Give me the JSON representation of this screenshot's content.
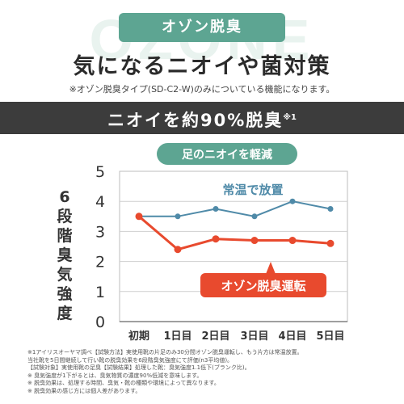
{
  "background_text": "OZONE",
  "tag_label": "オゾン脱臭",
  "headline": "気になるニオイや菌対策",
  "subnote": "※オゾン脱臭タイプ(SD-C2-W)のみについている機能になります。",
  "banner": {
    "text": "ニオイを約90%脱臭",
    "sup": "※1"
  },
  "chart_data": {
    "type": "line",
    "title": "足のニオイを軽減",
    "ylabel": "6段階臭気強度",
    "categories": [
      "初期",
      "1日目",
      "2日目",
      "3日目",
      "4日目",
      "5日目"
    ],
    "ylim": [
      0,
      5
    ],
    "yticks": [
      "0",
      "1",
      "2",
      "3",
      "4",
      "5"
    ],
    "grid": true,
    "series": [
      {
        "name": "常温で放置",
        "values": [
          3.5,
          3.5,
          3.75,
          3.5,
          4.0,
          3.75
        ],
        "color": "#4f8aa8"
      },
      {
        "name": "オゾン脱臭運転",
        "values": [
          3.5,
          2.4,
          2.75,
          2.7,
          2.7,
          2.6
        ],
        "color": "#e84a2e"
      }
    ]
  },
  "colors": {
    "accent_green": "#5da592",
    "dark_banner": "#3c3c3c",
    "red_series": "#e84a2e",
    "blue_series": "#4f8aa8"
  },
  "footnotes": [
    "※1アイリスオーヤマ調べ【試験方法】実使用靴の片足のみ30分間オゾン脱臭運転し、もう片方は常温放置。",
    "当社靴を5日間継続して行い靴の脱臭効果を6段階臭気強度にて評価(n3平均値)。",
    "【試験対象】実使用靴の足臭【試験結果】処理した靴：臭気強度1.1低下(ブランク比)。",
    "※ 臭気強度が1下がるとは、臭気物質の濃度90%低減を意味します。",
    "※ 脱臭効果は、処理する時間、臭気・靴の種類や環境によって異なります。",
    "※ 脱臭効果の感じ方には個人差があります。"
  ]
}
